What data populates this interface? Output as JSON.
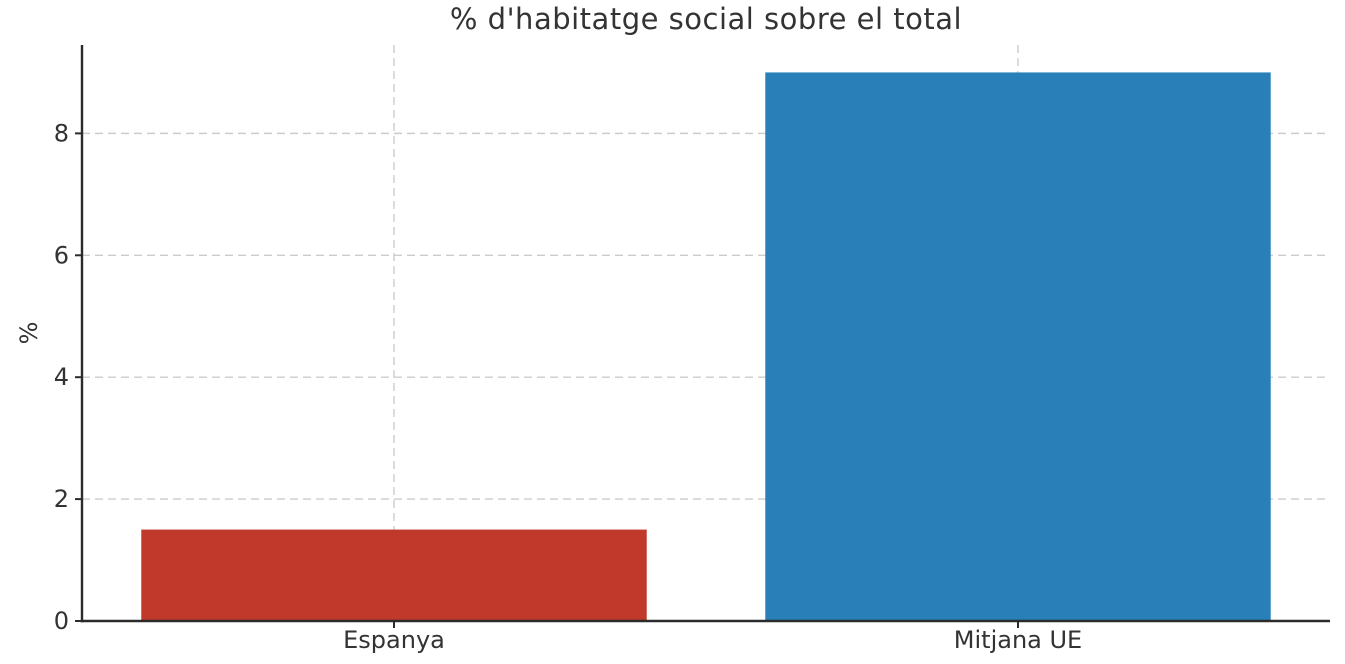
{
  "figure": {
    "background": "#ffffff"
  },
  "chart_data": {
    "type": "bar",
    "title": "% d'habitatge social sobre el total",
    "xlabel": "",
    "ylabel": "%",
    "categories": [
      "Espanya",
      "Mitjana UE"
    ],
    "values": [
      1.5,
      9.0
    ],
    "bar_colors": [
      "#c0392b",
      "#2980b9"
    ],
    "yticks": [
      0,
      2,
      4,
      6,
      8
    ],
    "ylim": [
      0,
      9.45
    ],
    "grid": true,
    "grid_style": "dashed",
    "grid_color": "#cccccc",
    "axis_color": "#2b2b2b",
    "text_color": "#333333",
    "legend": null
  }
}
